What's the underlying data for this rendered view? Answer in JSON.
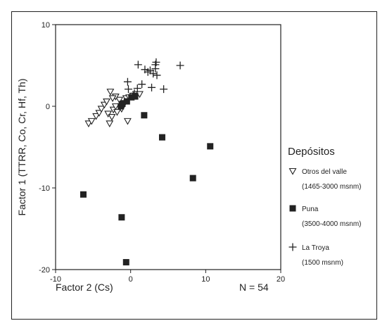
{
  "chart_data": {
    "type": "scatter",
    "xlabel": "Factor 2 (Cs)",
    "ylabel": "Factor 1 (TTRR, Co, Cr, Hf, Th)",
    "xlim": [
      -10,
      20
    ],
    "ylim": [
      -20,
      10
    ],
    "xticks": [
      "-10",
      "0",
      "10",
      "20"
    ],
    "yticks": [
      "10",
      "0",
      "-10",
      "-20"
    ],
    "annotation": "N = 54",
    "legend_title": "Depósitos",
    "legend_position": "right",
    "grid": false,
    "series": [
      {
        "name": "Otros del valle",
        "sublabel": "(1465-3000 msnm)",
        "marker": "triangle-down",
        "points": [
          [
            -5.6,
            -2.1
          ],
          [
            -5.2,
            -1.8
          ],
          [
            -4.6,
            -1.2
          ],
          [
            -4.2,
            -0.8
          ],
          [
            -3.9,
            -0.3
          ],
          [
            -3.5,
            0.2
          ],
          [
            -3.2,
            0.6
          ],
          [
            -2.8,
            -2.1
          ],
          [
            -3.0,
            -0.9
          ],
          [
            -2.5,
            -1.3
          ],
          [
            -2.3,
            -0.4
          ],
          [
            -2.0,
            0.0
          ],
          [
            -1.8,
            -0.7
          ],
          [
            -1.5,
            0.8
          ],
          [
            -1.2,
            -0.3
          ],
          [
            -0.8,
            0.4
          ],
          [
            -0.6,
            1.0
          ],
          [
            -0.4,
            -1.8
          ],
          [
            -0.2,
            1.1
          ],
          [
            0.3,
            1.3
          ],
          [
            0.7,
            1.5
          ],
          [
            1.2,
            1.5
          ],
          [
            -2.7,
            1.8
          ],
          [
            -2.0,
            1.2
          ],
          [
            -2.4,
            1.0
          ]
        ]
      },
      {
        "name": "Puna",
        "sublabel": "(3500-4000 msnm)",
        "marker": "square",
        "points": [
          [
            -6.3,
            -10.8
          ],
          [
            -1.2,
            -13.6
          ],
          [
            -0.6,
            -19.1
          ],
          [
            1.8,
            -1.1
          ],
          [
            4.2,
            -3.8
          ],
          [
            8.3,
            -8.8
          ],
          [
            10.6,
            -4.9
          ],
          [
            -1.3,
            0.0
          ],
          [
            -0.5,
            0.6
          ],
          [
            0.1,
            1.1
          ],
          [
            0.6,
            1.2
          ],
          [
            -1.1,
            0.3
          ]
        ]
      },
      {
        "name": "La Troya",
        "sublabel": "(1500 msnm)",
        "marker": "plus",
        "points": [
          [
            1.0,
            5.1
          ],
          [
            1.9,
            4.5
          ],
          [
            2.3,
            4.2
          ],
          [
            2.6,
            4.4
          ],
          [
            3.0,
            4.0
          ],
          [
            3.3,
            5.1
          ],
          [
            3.4,
            5.4
          ],
          [
            3.5,
            3.8
          ],
          [
            3.3,
            4.6
          ],
          [
            6.6,
            5.0
          ],
          [
            1.5,
            2.7
          ],
          [
            2.8,
            2.3
          ],
          [
            4.4,
            2.1
          ],
          [
            -0.3,
            2.1
          ],
          [
            -0.4,
            3.0
          ],
          [
            0.5,
            1.6
          ],
          [
            0.9,
            2.2
          ]
        ]
      }
    ]
  }
}
